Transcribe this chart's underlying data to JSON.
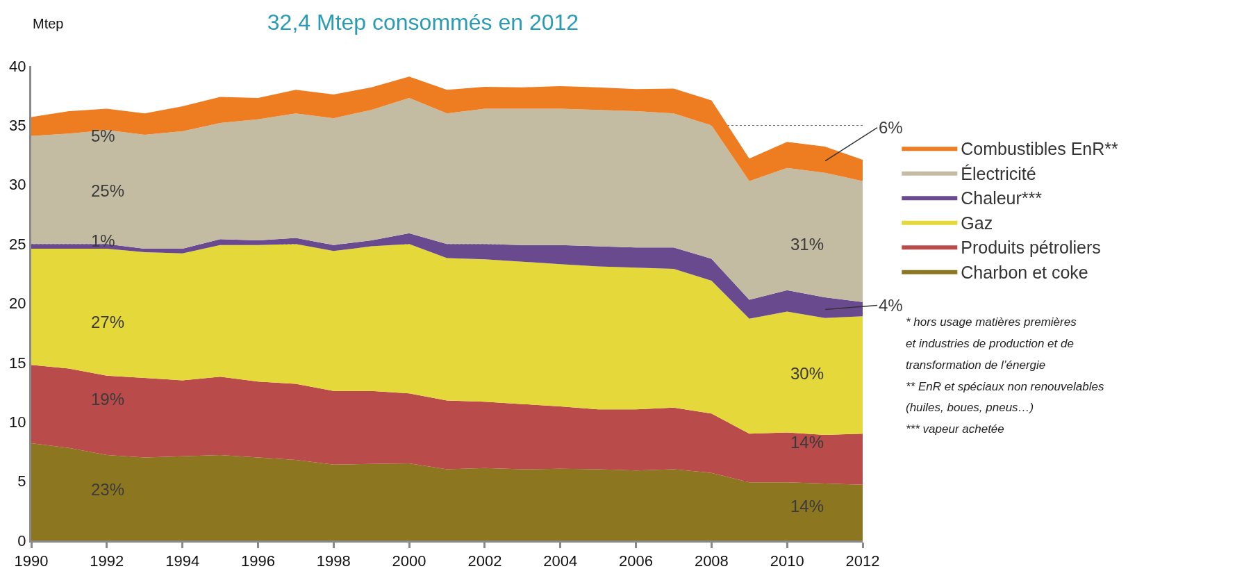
{
  "chart_data": {
    "type": "area",
    "stacked": true,
    "title": "32,4 Mtep consommés en 2012",
    "ylabel": "Mtep",
    "x": [
      1990,
      1991,
      1992,
      1993,
      1994,
      1995,
      1996,
      1997,
      1998,
      1999,
      2000,
      2001,
      2002,
      2003,
      2004,
      2005,
      2006,
      2007,
      2008,
      2009,
      2010,
      2011,
      2012
    ],
    "xlim": [
      1990,
      2012
    ],
    "xticks": [
      1990,
      1992,
      1994,
      1996,
      1998,
      2000,
      2002,
      2004,
      2006,
      2008,
      2010,
      2012
    ],
    "ylim": [
      0,
      40
    ],
    "yticks": [
      0,
      5,
      10,
      15,
      20,
      25,
      30,
      35,
      40
    ],
    "grid": "y",
    "legend": "right",
    "series": [
      {
        "name": "Charbon et coke",
        "color": "#8c7620",
        "values": [
          8.2,
          7.8,
          7.2,
          7.0,
          7.1,
          7.2,
          7.0,
          6.8,
          6.4,
          6.45,
          6.5,
          6.0,
          6.1,
          6.0,
          6.05,
          6.0,
          5.9,
          6.0,
          5.7,
          4.9,
          4.9,
          4.8,
          4.7
        ]
      },
      {
        "name": "Produits pétroliers",
        "color": "#b94b4a",
        "values": [
          6.6,
          6.7,
          6.7,
          6.7,
          6.4,
          6.6,
          6.4,
          6.4,
          6.2,
          6.15,
          5.9,
          5.8,
          5.6,
          5.5,
          5.25,
          5.05,
          5.15,
          5.2,
          5.0,
          4.1,
          4.2,
          4.1,
          4.3
        ]
      },
      {
        "name": "Gaz",
        "color": "#e5d83a",
        "values": [
          9.8,
          10.1,
          10.7,
          10.6,
          10.7,
          11.1,
          11.5,
          11.8,
          11.8,
          12.2,
          12.6,
          12.0,
          12.0,
          12.0,
          12.0,
          12.05,
          11.95,
          11.7,
          11.2,
          9.7,
          10.2,
          9.85,
          9.9
        ]
      },
      {
        "name": "Chaleur***",
        "color": "#6a4a8e",
        "values": [
          0.4,
          0.4,
          0.4,
          0.3,
          0.4,
          0.5,
          0.4,
          0.5,
          0.5,
          0.5,
          0.9,
          1.2,
          1.3,
          1.4,
          1.6,
          1.7,
          1.7,
          1.8,
          1.85,
          1.6,
          1.8,
          1.75,
          1.2
        ]
      },
      {
        "name": "Électricité",
        "color": "#c3bca3",
        "values": [
          9.1,
          9.3,
          9.6,
          9.6,
          9.9,
          9.8,
          10.2,
          10.5,
          10.7,
          11.0,
          11.4,
          11.0,
          11.4,
          11.5,
          11.5,
          11.5,
          11.5,
          11.3,
          11.25,
          10.0,
          10.3,
          10.5,
          10.2
        ]
      },
      {
        "name": "Combustibles EnR**",
        "color": "#ee7d22",
        "values": [
          1.6,
          1.9,
          1.8,
          1.8,
          2.1,
          2.2,
          1.8,
          2.0,
          2.0,
          1.9,
          1.8,
          2.0,
          1.85,
          1.8,
          1.9,
          1.9,
          1.85,
          2.1,
          2.1,
          1.9,
          2.2,
          2.2,
          1.8
        ]
      }
    ],
    "annotations": [
      "5%",
      "25%",
      "1%",
      "27%",
      "19%",
      "23%",
      "6%",
      "31%",
      "4%",
      "30%",
      "14%",
      "14%",
      "* hors usage matières premières",
      "et industries de production et de",
      "transformation de l’énergie",
      "** EnR et spéciaux non renouvelables",
      "(huiles, boues, pneus…)",
      "*** vapeur achetée"
    ]
  }
}
